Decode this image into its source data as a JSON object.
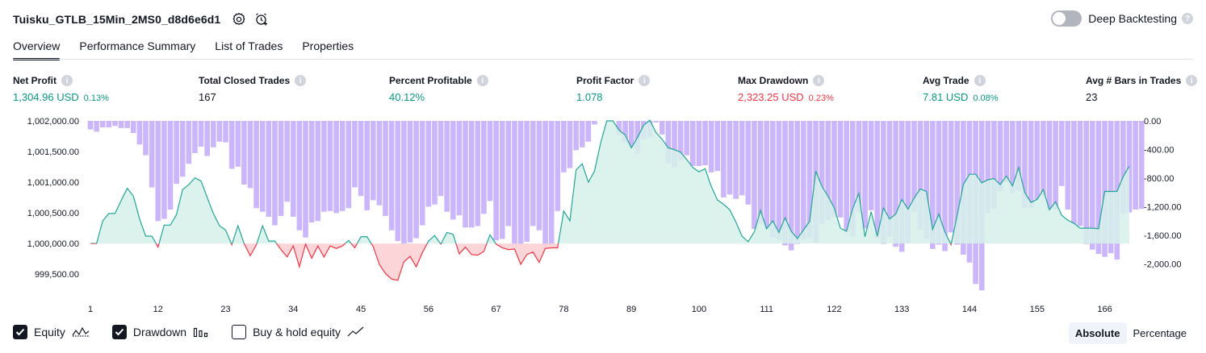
{
  "header": {
    "title": "Tuisku_GTLB_15Min_2MS0_d8d6e6d1",
    "deep_backtesting_label": "Deep Backtesting"
  },
  "tabs": [
    {
      "label": "Overview",
      "active": true
    },
    {
      "label": "Performance Summary",
      "active": false
    },
    {
      "label": "List of Trades",
      "active": false
    },
    {
      "label": "Properties",
      "active": false
    }
  ],
  "metrics": {
    "net_profit": {
      "label": "Net Profit",
      "value": "1,304.96 USD",
      "pct": "0.13%"
    },
    "total_closed_trades": {
      "label": "Total Closed Trades",
      "value": "167"
    },
    "percent_profitable": {
      "label": "Percent Profitable",
      "value": "40.12%"
    },
    "profit_factor": {
      "label": "Profit Factor",
      "value": "1.078"
    },
    "max_drawdown": {
      "label": "Max Drawdown",
      "value": "2,323.25 USD",
      "pct": "0.23%"
    },
    "avg_trade": {
      "label": "Avg Trade",
      "value": "7.81 USD",
      "pct": "0.08%"
    },
    "avg_bars": {
      "label": "Avg # Bars in Trades",
      "value": "23"
    }
  },
  "colors": {
    "positive": "#089981",
    "negative": "#f23645",
    "drawdown_bar": "#c8b2fb",
    "equity_line": "#22a597",
    "equity_fill": "#d6f1ea",
    "negative_fill": "#fbd0d4",
    "text": "#131722"
  },
  "legend": {
    "equity_label": "Equity",
    "equity_checked": true,
    "drawdown_label": "Drawdown",
    "drawdown_checked": true,
    "buyhold_label": "Buy & hold equity",
    "buyhold_checked": false
  },
  "mode": {
    "absolute_label": "Absolute",
    "percentage_label": "Percentage",
    "selected": "Absolute"
  },
  "chart_data": {
    "type": "line",
    "x_ticks": [
      1,
      12,
      23,
      34,
      45,
      56,
      67,
      78,
      89,
      100,
      111,
      122,
      133,
      144,
      155,
      166
    ],
    "left_axis": {
      "ticks": [
        "1,002,000.00",
        "1,001,500.00",
        "1,001,000.00",
        "1,000,500.00",
        "1,000,000.00",
        "999,500.00"
      ],
      "ylim": [
        999200,
        1002000
      ]
    },
    "right_axis": {
      "ticks": [
        "0.00",
        "-400.00",
        "-800.00",
        "-1,200.00",
        "-1,600.00",
        "-2,000.00"
      ],
      "ylim": [
        -2400,
        0
      ]
    },
    "baseline": 1000000,
    "series": [
      {
        "name": "Equity",
        "axis": "left",
        "values": [
          1000000,
          1000000,
          1000370,
          1000490,
          1000490,
          1000700,
          1000900,
          1000770,
          1000400,
          1000120,
          1000120,
          999940,
          1000300,
          1000300,
          1000470,
          1000880,
          1000960,
          1001070,
          1001020,
          1000750,
          1000490,
          1000290,
          1000220,
          999980,
          1000290,
          1000000,
          999800,
          999980,
          1000290,
          1000040,
          1000040,
          999900,
          999780,
          999960,
          999620,
          999990,
          999760,
          999960,
          999780,
          999960,
          999920,
          999960,
          1000050,
          999930,
          1000110,
          1000110,
          999950,
          999660,
          999510,
          999420,
          999400,
          999700,
          999790,
          999620,
          999850,
          1000040,
          1000130,
          999990,
          1000180,
          1000150,
          999830,
          999940,
          999820,
          999810,
          999870,
          1000140,
          999990,
          999930,
          999900,
          999910,
          999660,
          999820,
          999860,
          999690,
          999920,
          999930,
          999930,
          1000530,
          1000370,
          1001200,
          1001300,
          1001000,
          1001180,
          1001640,
          1002000,
          1002000,
          1001850,
          1001770,
          1001560,
          1001730,
          1001930,
          1002010,
          1001810,
          1001700,
          1001560,
          1001530,
          1001490,
          1001370,
          1001240,
          1001170,
          1001220,
          1000930,
          1000710,
          1000640,
          1000550,
          1000350,
          1000120,
          1000030,
          1000190,
          1000540,
          1000240,
          1000370,
          1000180,
          1000420,
          1000200,
          1000080,
          1000220,
          1000360,
          1001180,
          1000930,
          1000770,
          1000580,
          1000250,
          1000200,
          1000570,
          1000820,
          1000110,
          1000520,
          1000120,
          1000580,
          1000400,
          1000480,
          1000720,
          1000560,
          1000740,
          1000890,
          1000850,
          1000230,
          1000480,
          1000190,
          999980,
          1000460,
          1000960,
          1001130,
          1001130,
          1000990,
          1001040,
          1001060,
          1000960,
          1001100,
          1000940,
          1001240,
          1000830,
          1000670,
          1000720,
          1000880,
          1000550,
          1000680,
          1000460,
          1000380,
          1000330,
          1000250,
          1000250,
          1000250,
          1000240,
          1000850,
          1000850,
          1000850,
          1001090,
          1001260
        ]
      },
      {
        "name": "Drawdown",
        "axis": "right",
        "values": [
          -120,
          -150,
          -90,
          -90,
          -70,
          -100,
          -100,
          -170,
          -330,
          -480,
          -930,
          -1400,
          -1370,
          -1240,
          -880,
          -780,
          -600,
          -450,
          -360,
          -490,
          -370,
          -290,
          -300,
          -670,
          -640,
          -890,
          -940,
          -1220,
          -1270,
          -1340,
          -1460,
          -1330,
          -1130,
          -1340,
          -1530,
          -1630,
          -1420,
          -1400,
          -1270,
          -1260,
          -1290,
          -1260,
          -1220,
          -930,
          -1050,
          -1250,
          -1110,
          -1180,
          -1330,
          -1530,
          -1680,
          -1720,
          -1700,
          -1640,
          -1460,
          -1200,
          -1170,
          -1050,
          -1270,
          -1380,
          -1320,
          -1490,
          -1490,
          -1470,
          -1300,
          -1120,
          -1670,
          -1650,
          -1470,
          -1720,
          -1720,
          -1690,
          -1470,
          -1530,
          -1740,
          -1720,
          -1260,
          -720,
          -660,
          -410,
          -370,
          -290,
          -50,
          0,
          0,
          0,
          -200,
          -310,
          -360,
          -460,
          -260,
          -230,
          -20,
          -190,
          -590,
          -650,
          -550,
          -480,
          -630,
          -630,
          -620,
          -720,
          -700,
          -1070,
          -1030,
          -1090,
          -1040,
          -1170,
          -1510,
          -1440,
          -1520,
          -1630,
          -1660,
          -1740,
          -1810,
          -1720,
          -1660,
          -1640,
          -1700,
          -1440,
          -1390,
          -1340,
          -1350,
          -1550,
          -1610,
          -1280,
          -1500,
          -1250,
          -1640,
          -1720,
          -1620,
          -1760,
          -1830,
          -1710,
          -1280,
          -1530,
          -1650,
          -1790,
          -1730,
          -1820,
          -1560,
          -1730,
          -1870,
          -1980,
          -2280,
          -2370,
          -1290,
          -1230,
          -980,
          -860,
          -1010,
          -980,
          -1220,
          -1220,
          -1100,
          -1060,
          -1230,
          -1240,
          -910,
          -1240,
          -1450,
          -1470,
          -1720,
          -1800,
          -1860,
          -1900,
          -1850,
          -1940,
          -1300,
          -1280,
          -1240,
          -1230
        ]
      }
    ]
  }
}
